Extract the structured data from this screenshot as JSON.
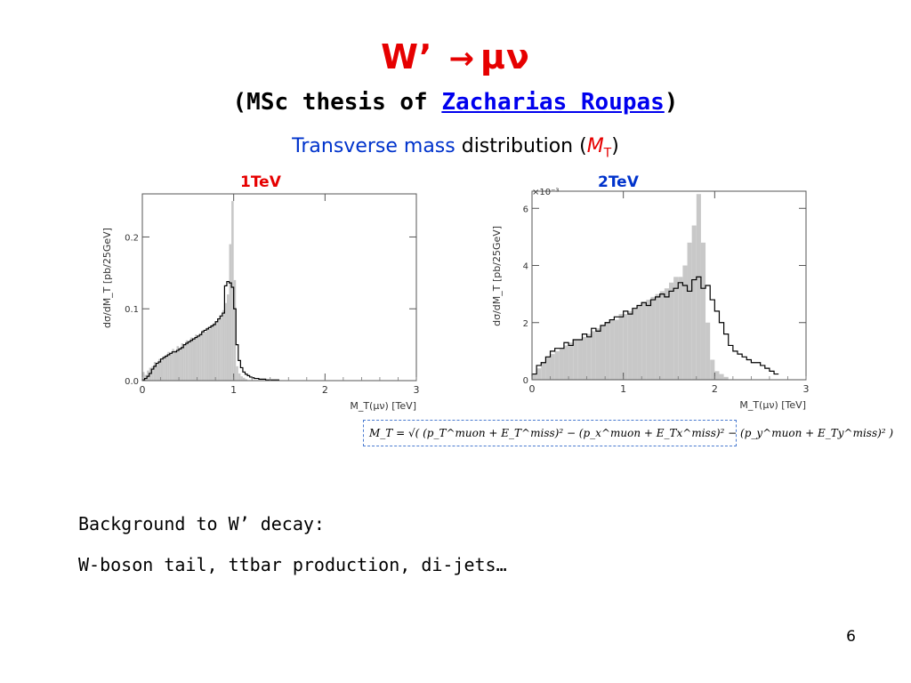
{
  "slide": {
    "title_left": "W’",
    "title_arrow": "→",
    "title_right": "μν",
    "subtitle_prefix": "(MSc thesis of ",
    "subtitle_link": "Zacharias Roupas",
    "subtitle_suffix": ")",
    "mt_blue": "Transverse mass",
    "mt_black": " distribution (",
    "mt_symbol": "M",
    "mt_sub": "T",
    "mt_close": ")",
    "formula": "M_T = √( (p_T^muon + E_T^miss)² − (p_x^muon + E_Tx^miss)² − (p_y^muon + E_Ty^miss)² )",
    "background_line1": "Background to W’ decay:",
    "background_line2": "W-boson tail, ttbar production, di-jets…",
    "page_number": "6",
    "colors": {
      "title": "#e60000",
      "link": "#0000ee",
      "blue": "#0033cc",
      "hist_fill": "#c8c8c8"
    }
  },
  "chart_data": [
    {
      "type": "bar",
      "label": "1TeV",
      "xlabel": "M_T(μν) [TeV]",
      "ylabel": "dσ/dM_T [pb/25GeV]",
      "xlim": [
        0,
        3
      ],
      "ylim": [
        0,
        0.26
      ],
      "xticks": [
        0,
        1,
        2,
        3
      ],
      "yticks": [
        0,
        0.1,
        0.2
      ],
      "ytick_labels": [
        "0.0",
        "0.1",
        "0.2"
      ],
      "bin_width": 0.025,
      "series": [
        {
          "style": "filled",
          "start": 0.0,
          "values": [
            0.012,
            0.008,
            0.014,
            0.018,
            0.02,
            0.026,
            0.022,
            0.03,
            0.028,
            0.034,
            0.036,
            0.04,
            0.038,
            0.044,
            0.042,
            0.048,
            0.046,
            0.052,
            0.05,
            0.056,
            0.054,
            0.06,
            0.058,
            0.064,
            0.062,
            0.066,
            0.07,
            0.068,
            0.074,
            0.072,
            0.078,
            0.08,
            0.082,
            0.086,
            0.09,
            0.098,
            0.108,
            0.12,
            0.19,
            0.25,
            0.14,
            0.02,
            0.01,
            0.006,
            0.004,
            0.002
          ]
        },
        {
          "style": "line",
          "start": 0.0,
          "values": [
            0.001,
            0.003,
            0.006,
            0.01,
            0.016,
            0.02,
            0.024,
            0.026,
            0.03,
            0.032,
            0.034,
            0.036,
            0.038,
            0.04,
            0.04,
            0.042,
            0.044,
            0.046,
            0.05,
            0.052,
            0.054,
            0.056,
            0.058,
            0.06,
            0.062,
            0.064,
            0.068,
            0.07,
            0.072,
            0.074,
            0.076,
            0.078,
            0.082,
            0.086,
            0.09,
            0.094,
            0.132,
            0.138,
            0.136,
            0.13,
            0.1,
            0.05,
            0.028,
            0.018,
            0.012,
            0.009,
            0.007,
            0.005,
            0.004,
            0.003,
            0.003,
            0.002,
            0.002,
            0.002,
            0.001,
            0.001,
            0.001,
            0.001,
            0.001,
            0.001
          ]
        }
      ]
    },
    {
      "type": "bar",
      "label": "2TeV",
      "xlabel": "M_T(μν) [TeV]",
      "ylabel": "dσ/dM_T [pb/25GeV]",
      "scale_label": "×10⁻³",
      "xlim": [
        0,
        3
      ],
      "ylim": [
        0,
        6.6
      ],
      "xticks": [
        0,
        1,
        2,
        3
      ],
      "yticks": [
        0,
        2,
        4,
        6
      ],
      "ytick_labels": [
        "0",
        "2",
        "4",
        "6"
      ],
      "bin_width": 0.05,
      "series": [
        {
          "style": "filled",
          "start": 0.0,
          "values": [
            0.2,
            0.4,
            0.6,
            0.8,
            0.9,
            1.0,
            1.1,
            1.2,
            1.3,
            1.4,
            1.4,
            1.5,
            1.6,
            1.7,
            1.8,
            1.9,
            2.0,
            2.1,
            2.1,
            2.3,
            2.3,
            2.4,
            2.5,
            2.6,
            2.7,
            2.8,
            2.9,
            3.0,
            3.1,
            3.2,
            3.4,
            3.6,
            3.6,
            4.0,
            4.8,
            5.4,
            6.5,
            4.8,
            2.0,
            0.7,
            0.3,
            0.2,
            0.1
          ]
        },
        {
          "style": "line",
          "start": 0.0,
          "values": [
            0.2,
            0.5,
            0.6,
            0.8,
            1.0,
            1.1,
            1.1,
            1.3,
            1.2,
            1.4,
            1.4,
            1.6,
            1.5,
            1.8,
            1.7,
            1.9,
            2.0,
            2.1,
            2.2,
            2.2,
            2.4,
            2.3,
            2.5,
            2.6,
            2.7,
            2.6,
            2.8,
            2.9,
            3.0,
            2.9,
            3.1,
            3.2,
            3.4,
            3.3,
            3.1,
            3.5,
            3.6,
            3.2,
            3.3,
            2.8,
            2.4,
            2.0,
            1.6,
            1.2,
            1.0,
            0.9,
            0.8,
            0.7,
            0.6,
            0.6,
            0.5,
            0.4,
            0.3,
            0.2
          ]
        }
      ]
    }
  ]
}
